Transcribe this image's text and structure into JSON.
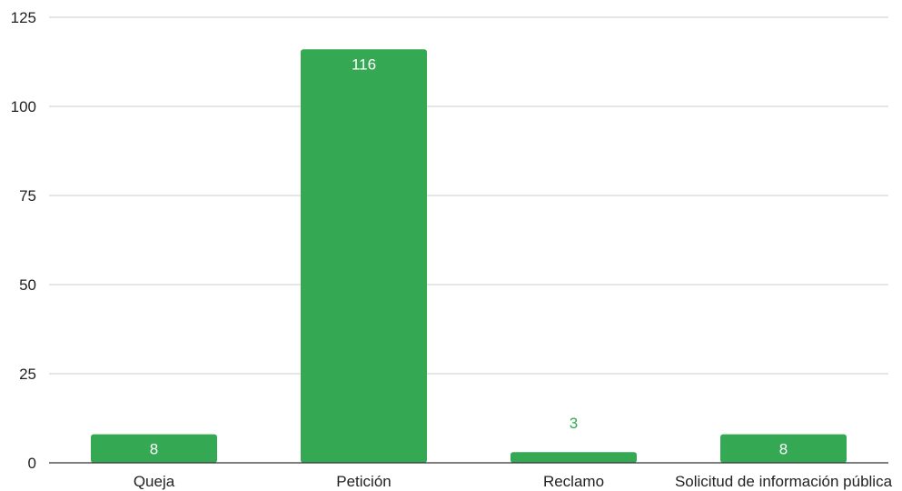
{
  "chart_data": {
    "type": "bar",
    "title": "",
    "xlabel": "",
    "ylabel": "",
    "categories": [
      "Queja",
      "Petición",
      "Reclamo",
      "Solicitud de información pública"
    ],
    "values": [
      8,
      116,
      3,
      8
    ],
    "data_labels": [
      "8",
      "116",
      "3",
      "8"
    ],
    "ylim": [
      0,
      125
    ],
    "yticks": [
      0,
      25,
      50,
      75,
      100,
      125
    ],
    "ytick_labels": [
      "0",
      "25",
      "50",
      "75",
      "100",
      "125"
    ],
    "grid": true,
    "legend": "none",
    "colors": {
      "bar": "#34a853",
      "label_inside": "#ffffff",
      "label_outside": "#34a853",
      "grid": "#cccccc",
      "axis": "#333333",
      "text": "#222222"
    }
  }
}
